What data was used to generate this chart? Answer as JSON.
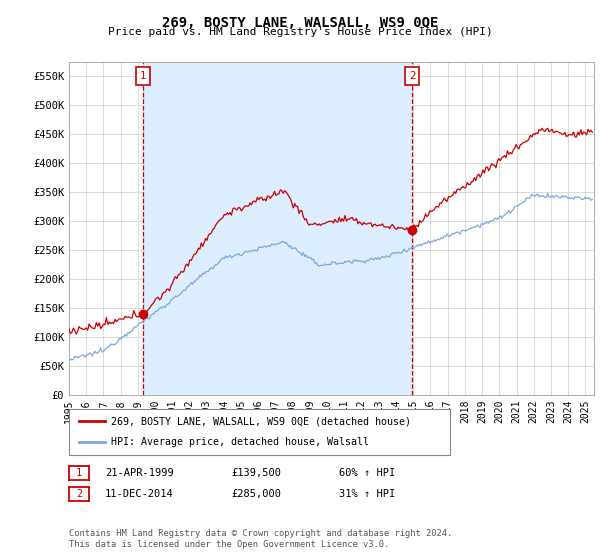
{
  "title": "269, BOSTY LANE, WALSALL, WS9 0QE",
  "subtitle": "Price paid vs. HM Land Registry's House Price Index (HPI)",
  "ylabel_ticks": [
    "£0",
    "£50K",
    "£100K",
    "£150K",
    "£200K",
    "£250K",
    "£300K",
    "£350K",
    "£400K",
    "£450K",
    "£500K",
    "£550K"
  ],
  "ytick_vals": [
    0,
    50000,
    100000,
    150000,
    200000,
    250000,
    300000,
    350000,
    400000,
    450000,
    500000,
    550000
  ],
  "ylim": [
    0,
    575000
  ],
  "xlim_start": 1995.0,
  "xlim_end": 2025.5,
  "marker1_x": 1999.3,
  "marker1_y": 139500,
  "marker2_x": 2014.95,
  "marker2_y": 285000,
  "legend_line1_label": "269, BOSTY LANE, WALSALL, WS9 0QE (detached house)",
  "legend_line2_label": "HPI: Average price, detached house, Walsall",
  "table_row1": [
    "1",
    "21-APR-1999",
    "£139,500",
    "60% ↑ HPI"
  ],
  "table_row2": [
    "2",
    "11-DEC-2014",
    "£285,000",
    "31% ↑ HPI"
  ],
  "footnote": "Contains HM Land Registry data © Crown copyright and database right 2024.\nThis data is licensed under the Open Government Licence v3.0.",
  "line_color_red": "#cc0000",
  "line_color_blue": "#7aaadd",
  "fill_color": "#ddeeff",
  "grid_color": "#cccccc",
  "marker_box_color": "#cc0000",
  "bg_color": "#ffffff"
}
